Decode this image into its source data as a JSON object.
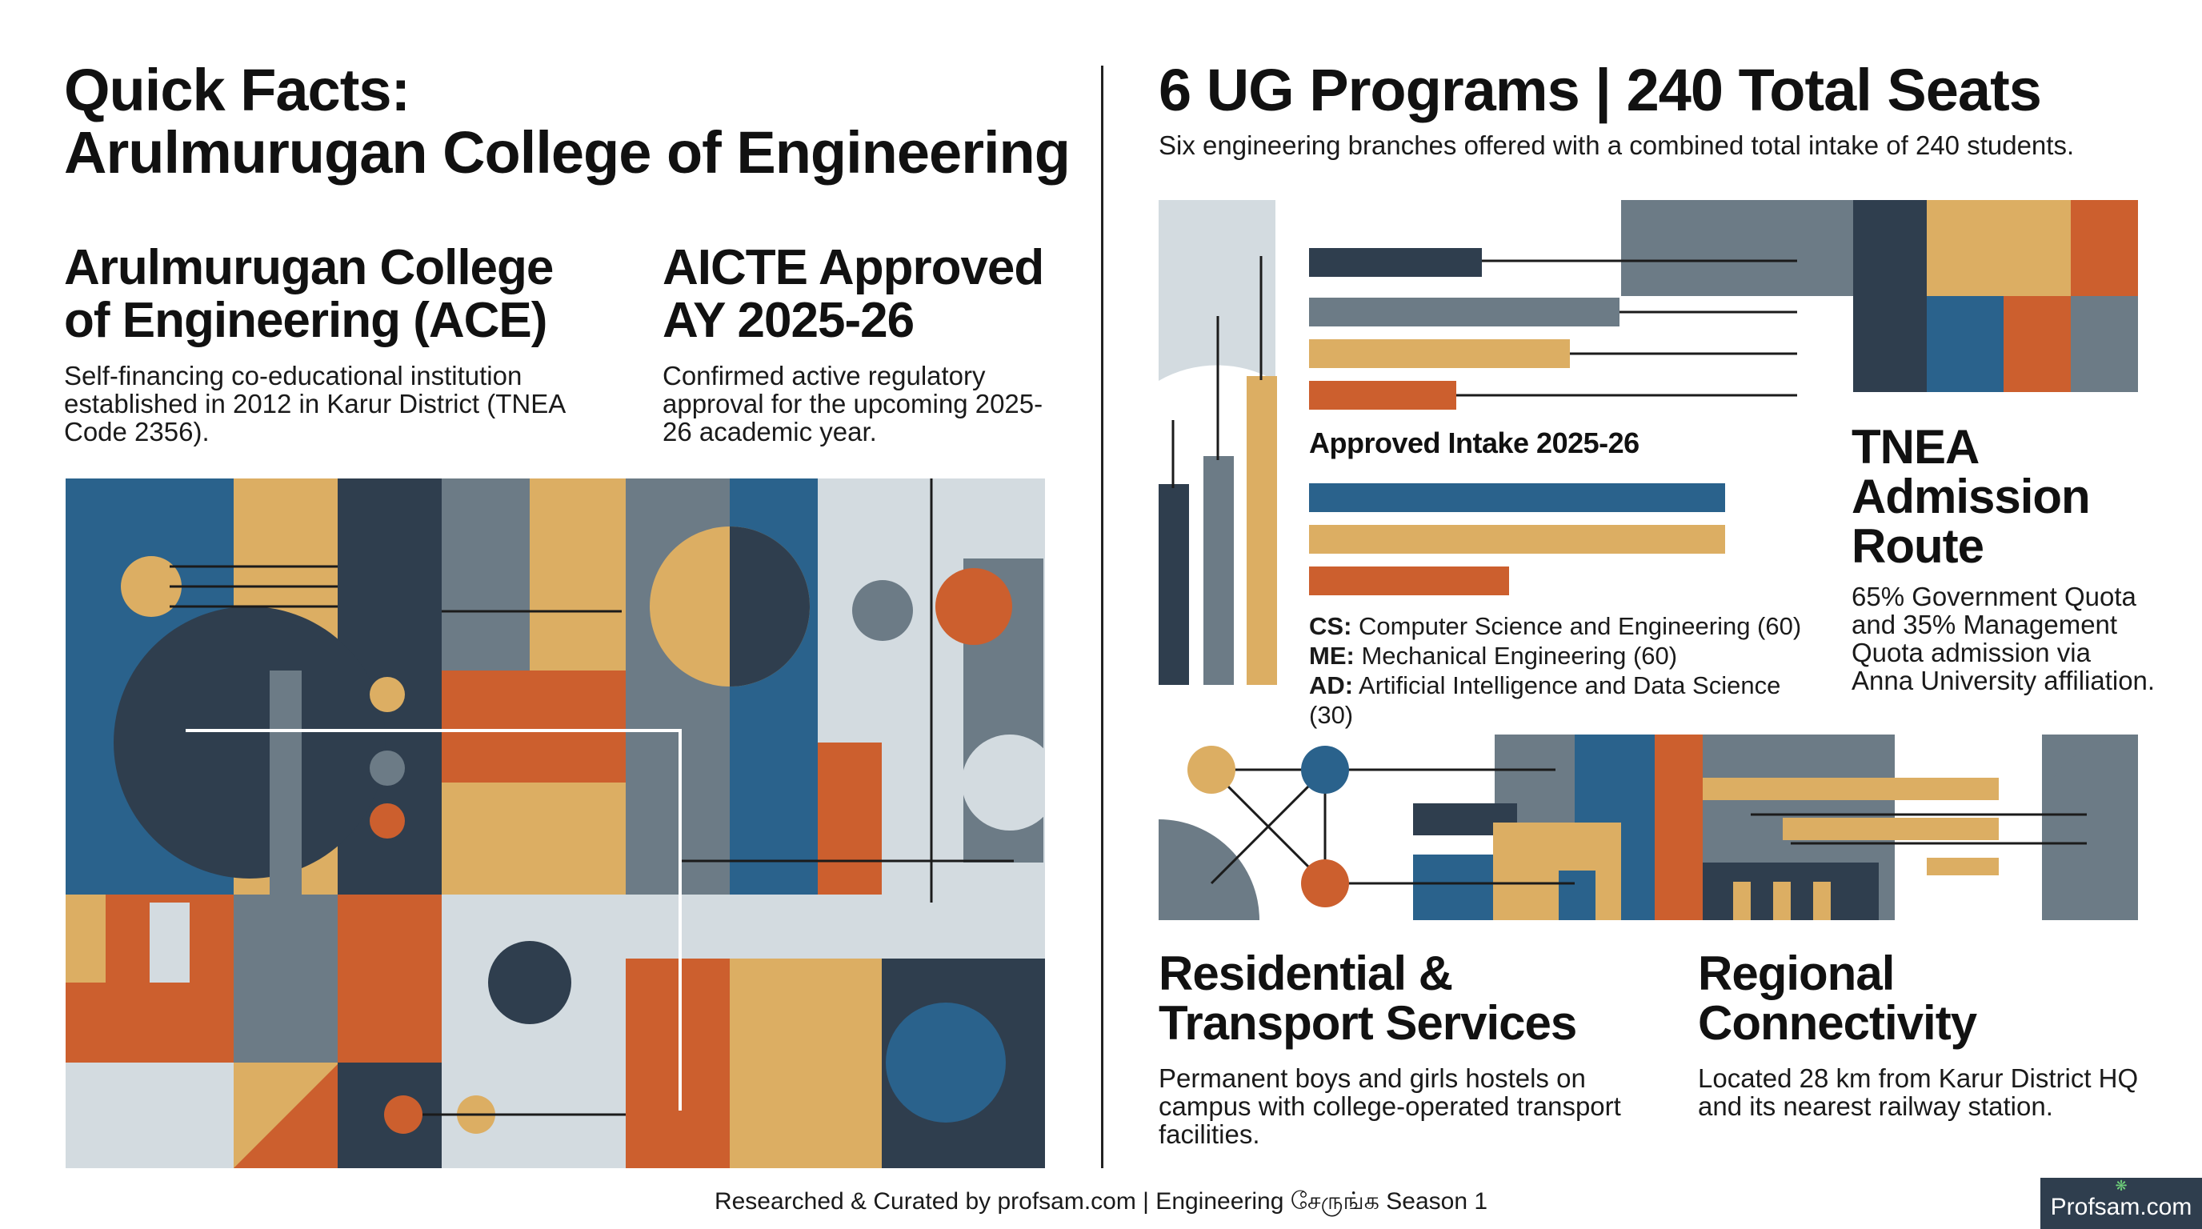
{
  "colors": {
    "navy": "#2f3e4e",
    "blue": "#2a628c",
    "sand": "#dcae63",
    "orange": "#cc5f2e",
    "gray": "#6c7b86",
    "light": "#d3dbe0"
  },
  "left": {
    "title_line1": "Quick Facts:",
    "title_line2": "Arulmurugan College of Engineering",
    "card1": {
      "title_line1": "Arulmurugan College",
      "title_line2": "of Engineering (ACE)",
      "desc": "Self-financing co-educational institution established in 2012 in Karur District (TNEA Code 2356)."
    },
    "card2": {
      "title_line1": "AICTE Approved",
      "title_line2": "AY 2025-26",
      "desc": "Confirmed active regulatory approval for the upcoming 2025-26 academic year."
    }
  },
  "right": {
    "title": "6 UG Programs | 240 Total Seats",
    "subtitle": "Six engineering branches offered with a combined total intake of 240 students.",
    "intake": {
      "heading": "Approved Intake 2025-26",
      "items": [
        {
          "code": "CS:",
          "name": "Computer Science and Engineering (60)"
        },
        {
          "code": "ME:",
          "name": "Mechanical Engineering (60)"
        },
        {
          "code": "AD:",
          "name": "Artificial Intelligence and Data Science (30)"
        }
      ]
    },
    "tnea": {
      "title_line1": "TNEA",
      "title_line2": "Admission",
      "title_line3": "Route",
      "desc": "65% Government Quota and 35% Management Quota admission via Anna University affiliation."
    },
    "residential": {
      "title_line1": "Residential &",
      "title_line2": "Transport Services",
      "desc": "Permanent boys and girls hostels on campus with college-operated transport facilities."
    },
    "regional": {
      "title_line1": "Regional",
      "title_line2": "Connectivity",
      "desc": "Located 28 km from Karur District HQ and its nearest railway station."
    }
  },
  "footer": {
    "credit": "Researched & Curated by profsam.com | Engineering சேருங்க Season 1",
    "badge": "Profsam.com"
  }
}
